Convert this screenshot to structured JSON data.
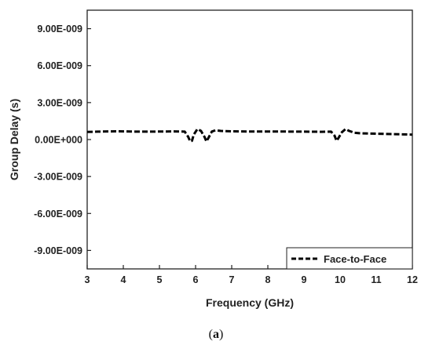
{
  "caption": {
    "open": "(",
    "letter": "a",
    "close": ")"
  },
  "chart_data": {
    "type": "line",
    "xlabel": "Frequency (GHz)",
    "ylabel": "Group Delay (s)",
    "xlim": [
      3,
      12
    ],
    "ylim": [
      -1.05e-08,
      1.05e-08
    ],
    "x_ticks": [
      3,
      4,
      5,
      6,
      7,
      8,
      9,
      10,
      11,
      12
    ],
    "y_ticks": [
      9e-09,
      6e-09,
      3e-09,
      0,
      -3e-09,
      -6e-09,
      -9e-09
    ],
    "x_tick_labels": [
      "3",
      "4",
      "5",
      "6",
      "7",
      "8",
      "9",
      "10",
      "11",
      "12"
    ],
    "y_tick_labels": [
      "9.00E-009",
      "6.00E-009",
      "3.00E-009",
      "0.00E+000",
      "-3.00E-009",
      "-6.00E-009",
      "-9.00E-009"
    ],
    "grid": false,
    "legend": {
      "position": "bottom-right"
    },
    "series": [
      {
        "name": "Face-to-Face",
        "color": "#000000",
        "style": "dashed",
        "x": [
          3.0,
          3.3,
          3.6,
          3.9,
          4.2,
          4.6,
          5.0,
          5.4,
          5.7,
          5.8,
          5.85,
          5.9,
          5.95,
          6.05,
          6.15,
          6.25,
          6.3,
          6.35,
          6.45,
          6.55,
          6.7,
          7.0,
          7.5,
          8.0,
          8.5,
          9.0,
          9.5,
          9.75,
          9.85,
          9.9,
          9.95,
          10.05,
          10.15,
          10.25,
          10.4,
          10.6,
          11.0,
          11.5,
          12.0
        ],
        "y": [
          6.2e-10,
          6.4e-10,
          6.6e-10,
          6.7e-10,
          6.5e-10,
          6.4e-10,
          6.5e-10,
          6.6e-10,
          6.4e-10,
          2e-10,
          -1.5e-10,
          -1e-10,
          4e-10,
          8.5e-10,
          7e-10,
          2e-10,
          -1.5e-10,
          1e-10,
          6.5e-10,
          7.5e-10,
          7e-10,
          6.7e-10,
          6.5e-10,
          6.5e-10,
          6.5e-10,
          6.4e-10,
          6.3e-10,
          6.4e-10,
          3e-10,
          -1e-10,
          1e-10,
          6e-10,
          8.5e-10,
          7e-10,
          5.5e-10,
          5e-10,
          4.8e-10,
          4.4e-10,
          4e-10
        ]
      }
    ]
  }
}
